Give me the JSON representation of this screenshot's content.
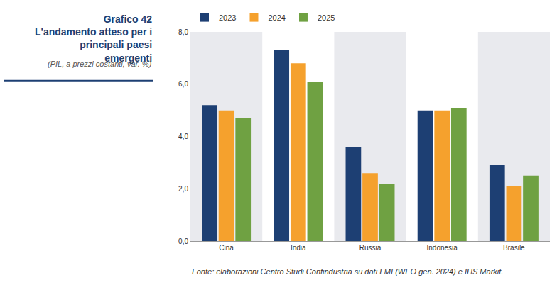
{
  "chart_data": {
    "type": "bar",
    "title": "Grafico 42",
    "subtitle": "L'andamento atteso per i principali paesi emergenti",
    "ylabel": "(PIL, a prezzi costanti, var. %)",
    "source": "Fonte: elaborazioni Centro Studi Confindustria su dati FMI (WEO gen. 2024) e IHS Markit.",
    "categories": [
      "Cina",
      "India",
      "Russia",
      "Indonesia",
      "Brasile"
    ],
    "series": [
      {
        "name": "2023",
        "color": "#1d3f73",
        "values": [
          5.2,
          7.3,
          3.6,
          5.0,
          2.9
        ]
      },
      {
        "name": "2024",
        "color": "#f5a12d",
        "values": [
          5.0,
          6.8,
          2.6,
          5.0,
          2.1
        ]
      },
      {
        "name": "2025",
        "color": "#6fa142",
        "values": [
          4.7,
          6.1,
          2.2,
          5.1,
          2.5
        ]
      }
    ],
    "ylim": [
      0,
      8
    ],
    "yticks": [
      {
        "value": 0,
        "label": "0,0"
      },
      {
        "value": 2,
        "label": "2,0"
      },
      {
        "value": 4,
        "label": "4,0"
      },
      {
        "value": 6,
        "label": "6,0"
      },
      {
        "value": 8,
        "label": "8,0"
      }
    ],
    "grid": false,
    "legend": "top-left"
  }
}
